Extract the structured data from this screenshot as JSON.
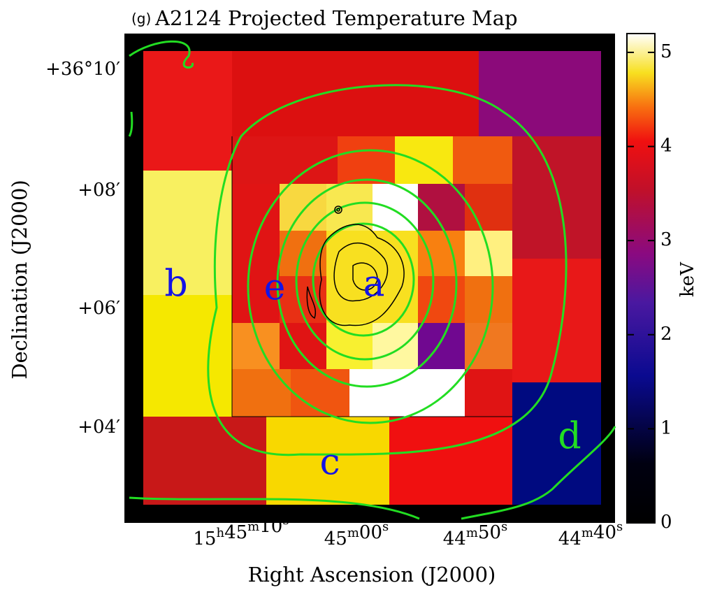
{
  "chart_data": {
    "type": "heatmap",
    "panel": "(g)",
    "title": "A2124 Projected Temperature Map",
    "x_label": "Right Ascension (J2000)",
    "y_label": "Declination (J2000)",
    "x_tick_labels": [
      "15h45m10s",
      "45m00s",
      "44m50s",
      "44m40s"
    ],
    "y_tick_labels": [
      "+36°10′",
      "+08′",
      "+06′",
      "+04′"
    ],
    "colorbar": {
      "label": "keV",
      "lim": [
        0,
        5.2
      ],
      "ticks": [
        0,
        1,
        2,
        3,
        4,
        5
      ]
    },
    "regions": [
      {
        "label": "a",
        "color": "#1414e6"
      },
      {
        "label": "b",
        "color": "#1414e6"
      },
      {
        "label": "c",
        "color": "#1414e6"
      },
      {
        "label": "d",
        "color": "#22dd22"
      },
      {
        "label": "e",
        "color": "#1414e6"
      }
    ]
  }
}
